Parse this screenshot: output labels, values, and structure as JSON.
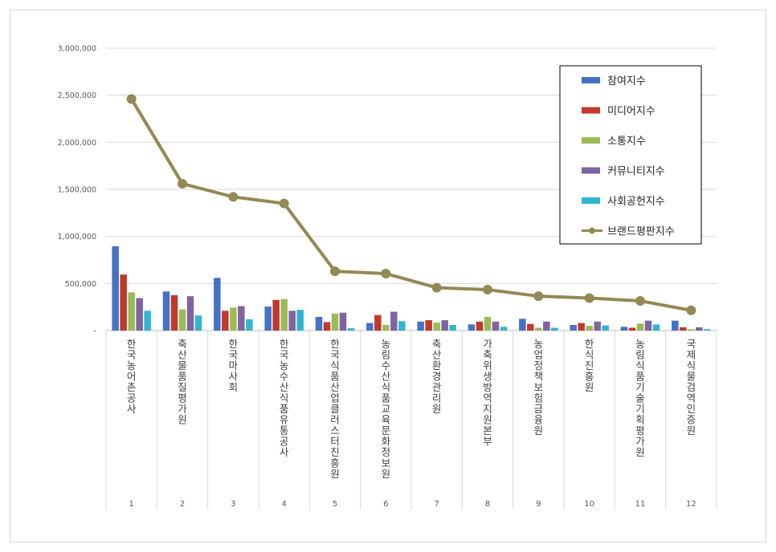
{
  "chart_data": {
    "type": "bar",
    "title": "",
    "xlabel": "",
    "ylabel": "",
    "ylim": [
      0,
      3000000
    ],
    "y_ticks": [
      "-",
      "500,000",
      "1,000,000",
      "1,500,000",
      "2,000,000",
      "2,500,000",
      "3,000,000"
    ],
    "grid": true,
    "legend_position": "top-right",
    "categories": [
      "1",
      "2",
      "3",
      "4",
      "5",
      "6",
      "7",
      "8",
      "9",
      "10",
      "11",
      "12"
    ],
    "category_names": [
      "한국농어촌공사",
      "축산물품질평가원",
      "한국마사회",
      "한국농수산식품유통공사",
      "한국식품산업클러스터진흥원",
      "농림수산식품교육문화정보원",
      "축산환경관리원",
      "가축위생방역지원본부",
      "농업정책보험금융원",
      "한식진흥원",
      "농림식품기술기획평가원",
      "국제식물검역인증원"
    ],
    "series": [
      {
        "name": "참여지수",
        "kind": "bar",
        "color": "#4472c4",
        "values": [
          895000,
          415000,
          560000,
          255000,
          145000,
          80000,
          95000,
          65000,
          125000,
          60000,
          40000,
          105000
        ]
      },
      {
        "name": "미디어지수",
        "kind": "bar",
        "color": "#c0392b",
        "values": [
          595000,
          375000,
          210000,
          325000,
          90000,
          165000,
          110000,
          95000,
          70000,
          80000,
          30000,
          35000
        ]
      },
      {
        "name": "소통지수",
        "kind": "bar",
        "color": "#9bbb59",
        "values": [
          405000,
          225000,
          245000,
          335000,
          180000,
          60000,
          85000,
          145000,
          30000,
          50000,
          75000,
          15000
        ]
      },
      {
        "name": "커뮤니티지수",
        "kind": "bar",
        "color": "#8064a2",
        "values": [
          345000,
          365000,
          260000,
          210000,
          190000,
          200000,
          110000,
          95000,
          95000,
          95000,
          105000,
          35000
        ]
      },
      {
        "name": "사회공헌지수",
        "kind": "bar",
        "color": "#31b6d1",
        "values": [
          210000,
          160000,
          120000,
          220000,
          25000,
          100000,
          60000,
          40000,
          30000,
          55000,
          65000,
          15000
        ]
      },
      {
        "name": "브랜드평판지수",
        "kind": "line",
        "color": "#938953",
        "values": [
          2460000,
          1560000,
          1420000,
          1350000,
          630000,
          605000,
          455000,
          435000,
          365000,
          345000,
          315000,
          215000
        ]
      }
    ]
  }
}
